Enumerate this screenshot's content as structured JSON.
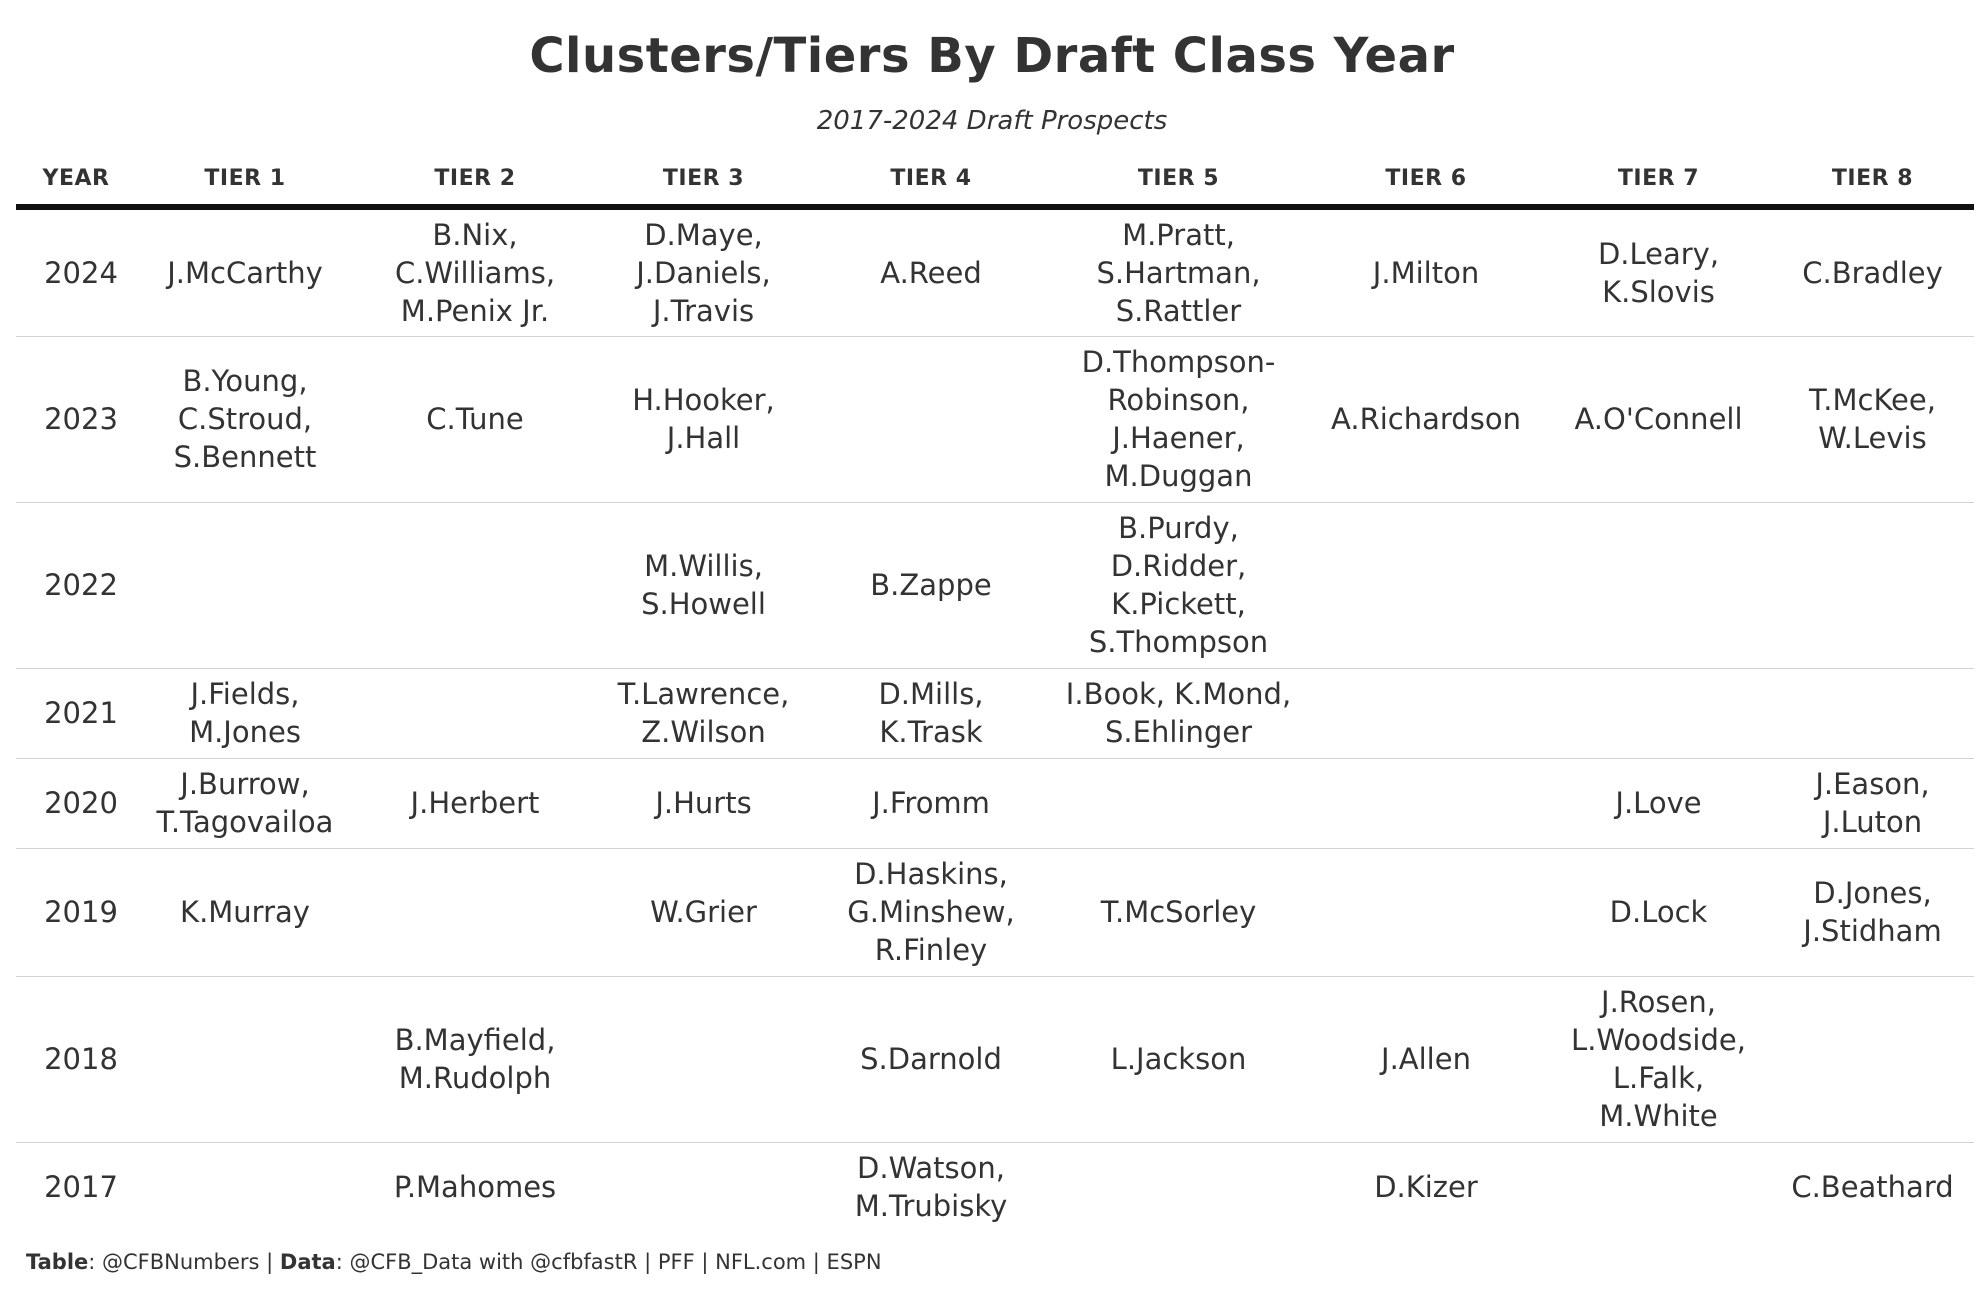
{
  "title": "Clusters/Tiers By Draft Class Year",
  "subtitle": "2017-2024 Draft Prospects",
  "caption": {
    "table_label": "Table",
    "table_value": ": @CFBNumbers | ",
    "data_label": "Data",
    "data_value": ": @CFB_Data with @cfbfastR | PFF | NFL.com | ESPN"
  },
  "chart_data": {
    "type": "table",
    "title": "Clusters/Tiers By Draft Class Year",
    "subtitle": "2017-2024 Draft Prospects",
    "columns": [
      "YEAR",
      "TIER 1",
      "TIER 2",
      "TIER 3",
      "TIER 4",
      "TIER 5",
      "TIER 6",
      "TIER 7",
      "TIER 8"
    ],
    "rows": [
      {
        "year": "2024",
        "height": 129,
        "cells": [
          [],
          [
            "J.McCarthy"
          ],
          [
            "B.Nix,",
            "C.Williams,",
            "M.Penix Jr."
          ],
          [
            "D.Maye,",
            "J.Daniels,",
            "J.Travis"
          ],
          [
            "A.Reed"
          ],
          [
            "M.Pratt,",
            "S.Hartman,",
            "S.Rattler"
          ],
          [
            "J.Milton"
          ],
          [
            "D.Leary,",
            "K.Slovis"
          ],
          [
            "C.Bradley"
          ]
        ]
      },
      {
        "year": "2023",
        "height": 166,
        "cells": [
          [],
          [
            "B.Young,",
            "C.Stroud,",
            "S.Bennett"
          ],
          [
            "C.Tune"
          ],
          [
            "H.Hooker,",
            "J.Hall"
          ],
          [],
          [
            "D.Thompson-",
            "Robinson,",
            "J.Haener,",
            "M.Duggan"
          ],
          [
            "A.Richardson"
          ],
          [
            "A.O'Connell"
          ],
          [
            "T.McKee,",
            "W.Levis"
          ]
        ]
      },
      {
        "year": "2022",
        "height": 166,
        "cells": [
          [],
          [],
          [],
          [
            "M.Willis,",
            "S.Howell"
          ],
          [
            "B.Zappe"
          ],
          [
            "B.Purdy,",
            "D.Ridder,",
            "K.Pickett,",
            "S.Thompson"
          ],
          [],
          [],
          []
        ]
      },
      {
        "year": "2021",
        "height": 90,
        "cells": [
          [],
          [
            "J.Fields,",
            "M.Jones"
          ],
          [],
          [
            "T.Lawrence,",
            "Z.Wilson"
          ],
          [
            "D.Mills,",
            "K.Trask"
          ],
          [
            "I.Book, K.Mond,",
            "S.Ehlinger"
          ],
          [],
          [],
          []
        ]
      },
      {
        "year": "2020",
        "height": 90,
        "cells": [
          [],
          [
            "J.Burrow,",
            "T.Tagovailoa"
          ],
          [
            "J.Herbert"
          ],
          [
            "J.Hurts"
          ],
          [
            "J.Fromm"
          ],
          [],
          [],
          [
            "J.Love"
          ],
          [
            "J.Eason,",
            "J.Luton"
          ]
        ]
      },
      {
        "year": "2019",
        "height": 128,
        "cells": [
          [],
          [
            "K.Murray"
          ],
          [],
          [
            "W.Grier"
          ],
          [
            "D.Haskins,",
            "G.Minshew,",
            "R.Finley"
          ],
          [
            "T.McSorley"
          ],
          [],
          [
            "D.Lock"
          ],
          [
            "D.Jones,",
            "J.Stidham"
          ]
        ]
      },
      {
        "year": "2018",
        "height": 166,
        "cells": [
          [],
          [],
          [
            "B.Mayfield,",
            "M.Rudolph"
          ],
          [],
          [
            "S.Darnold"
          ],
          [
            "L.Jackson"
          ],
          [
            "J.Allen"
          ],
          [
            "J.Rosen,",
            "L.Woodside,",
            "L.Falk,",
            "M.White"
          ],
          []
        ]
      },
      {
        "year": "2017",
        "height": 90,
        "cells": [
          [],
          [],
          [
            "P.Mahomes"
          ],
          [],
          [
            "D.Watson,",
            "M.Trubisky"
          ],
          [],
          [
            "D.Kizer"
          ],
          [],
          [
            "C.Beathard"
          ]
        ]
      }
    ]
  }
}
